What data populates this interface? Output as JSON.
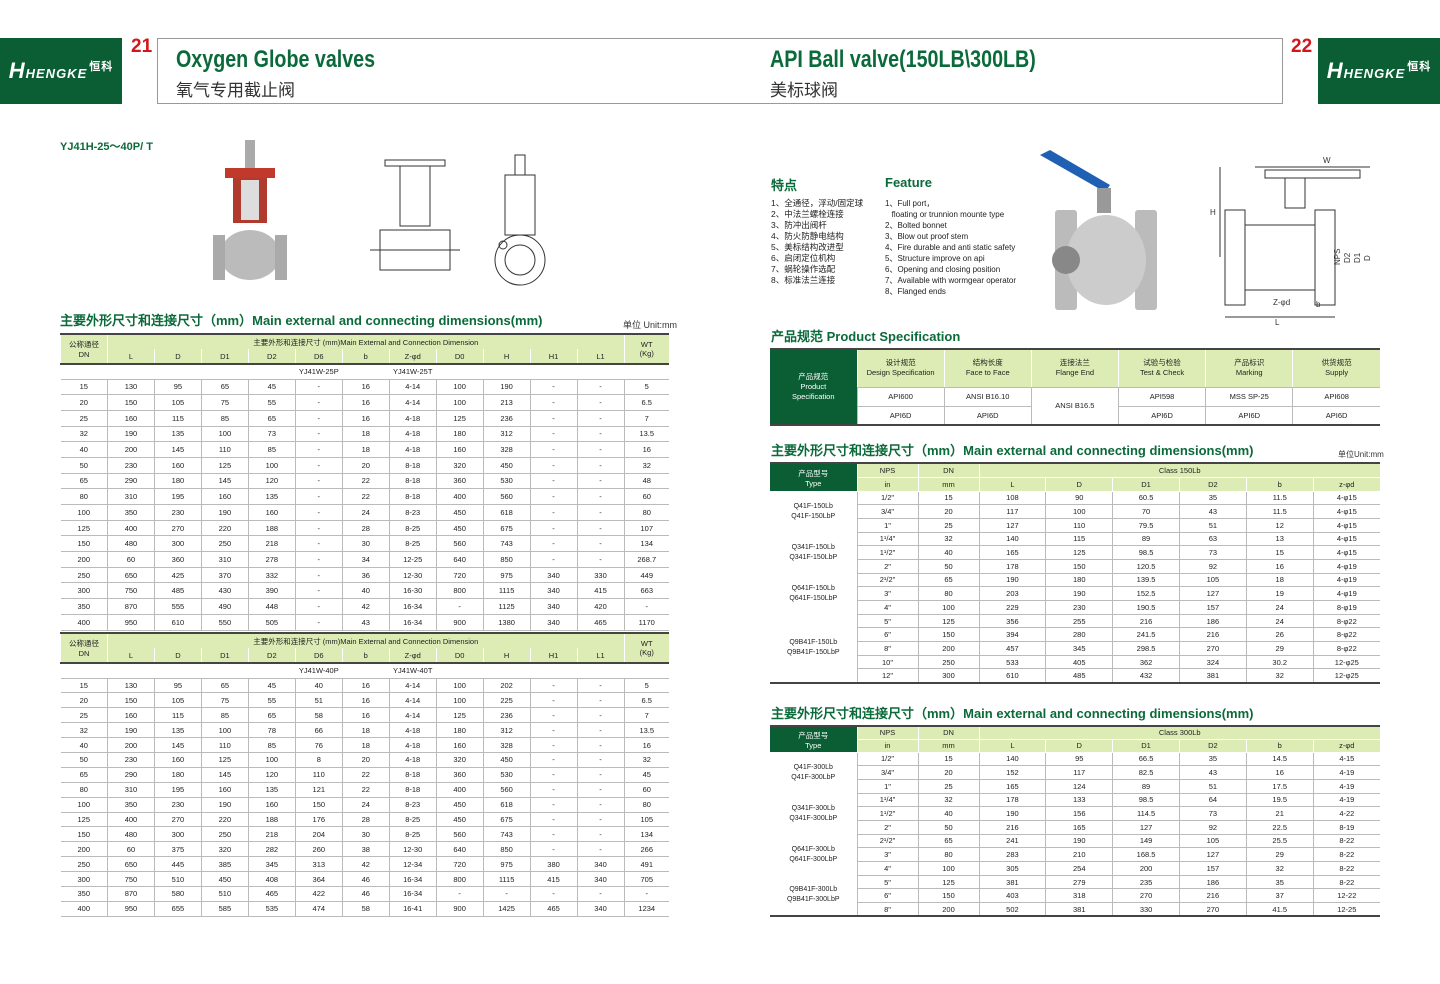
{
  "brand": {
    "logo_text": "HENGKE",
    "logo_cn": "恒科"
  },
  "left": {
    "page_number": "21",
    "title": "Oxygen Globe valves",
    "subtitle": "氧气专用截止阀",
    "model": "YJ41H-25～40P/ T",
    "dims_heading": "主要外形尺寸和连接尺寸（mm）Main external and connecting dimensions(mm)",
    "unit": "单位 Unit:mm",
    "header": {
      "dn_cn": "公称通径",
      "dn": "DN",
      "span": "主要外形和连接尺寸 (mm)Main External and Connection Dimension",
      "wt": "WT",
      "wt_unit": "(Kg)",
      "cols": [
        "L",
        "D",
        "D1",
        "D2",
        "D6",
        "b",
        "Z-φd",
        "D0",
        "H",
        "H1",
        "L1"
      ]
    },
    "table1": {
      "models": [
        "YJ41W-25P",
        "YJ41W-25T"
      ],
      "rows": [
        [
          "15",
          "130",
          "95",
          "65",
          "45",
          "-",
          "16",
          "4-14",
          "100",
          "190",
          "-",
          "-",
          "5"
        ],
        [
          "20",
          "150",
          "105",
          "75",
          "55",
          "-",
          "16",
          "4-14",
          "100",
          "213",
          "-",
          "-",
          "6.5"
        ],
        [
          "25",
          "160",
          "115",
          "85",
          "65",
          "-",
          "16",
          "4-18",
          "125",
          "236",
          "-",
          "-",
          "7"
        ],
        [
          "32",
          "190",
          "135",
          "100",
          "73",
          "-",
          "18",
          "4-18",
          "180",
          "312",
          "-",
          "-",
          "13.5"
        ],
        [
          "40",
          "200",
          "145",
          "110",
          "85",
          "-",
          "18",
          "4-18",
          "160",
          "328",
          "-",
          "-",
          "16"
        ],
        [
          "50",
          "230",
          "160",
          "125",
          "100",
          "-",
          "20",
          "8-18",
          "320",
          "450",
          "-",
          "-",
          "32"
        ],
        [
          "65",
          "290",
          "180",
          "145",
          "120",
          "-",
          "22",
          "8-18",
          "360",
          "530",
          "-",
          "-",
          "48"
        ],
        [
          "80",
          "310",
          "195",
          "160",
          "135",
          "-",
          "22",
          "8-18",
          "400",
          "560",
          "-",
          "-",
          "60"
        ],
        [
          "100",
          "350",
          "230",
          "190",
          "160",
          "-",
          "24",
          "8-23",
          "450",
          "618",
          "-",
          "-",
          "80"
        ],
        [
          "125",
          "400",
          "270",
          "220",
          "188",
          "-",
          "28",
          "8-25",
          "450",
          "675",
          "-",
          "-",
          "107"
        ],
        [
          "150",
          "480",
          "300",
          "250",
          "218",
          "-",
          "30",
          "8-25",
          "560",
          "743",
          "-",
          "-",
          "134"
        ],
        [
          "200",
          "60",
          "360",
          "310",
          "278",
          "-",
          "34",
          "12-25",
          "640",
          "850",
          "-",
          "-",
          "268.7"
        ],
        [
          "250",
          "650",
          "425",
          "370",
          "332",
          "-",
          "36",
          "12-30",
          "720",
          "975",
          "340",
          "330",
          "449"
        ],
        [
          "300",
          "750",
          "485",
          "430",
          "390",
          "-",
          "40",
          "16-30",
          "800",
          "1115",
          "340",
          "415",
          "663"
        ],
        [
          "350",
          "870",
          "555",
          "490",
          "448",
          "-",
          "42",
          "16-34",
          "-",
          "1125",
          "340",
          "420",
          "-"
        ],
        [
          "400",
          "950",
          "610",
          "550",
          "505",
          "-",
          "43",
          "16-34",
          "900",
          "1380",
          "340",
          "465",
          "1170"
        ]
      ]
    },
    "table2": {
      "models": [
        "YJ41W-40P",
        "YJ41W-40T"
      ],
      "rows": [
        [
          "15",
          "130",
          "95",
          "65",
          "45",
          "40",
          "16",
          "4-14",
          "100",
          "202",
          "-",
          "-",
          "5"
        ],
        [
          "20",
          "150",
          "105",
          "75",
          "55",
          "51",
          "16",
          "4-14",
          "100",
          "225",
          "-",
          "-",
          "6.5"
        ],
        [
          "25",
          "160",
          "115",
          "85",
          "65",
          "58",
          "16",
          "4-14",
          "125",
          "236",
          "-",
          "-",
          "7"
        ],
        [
          "32",
          "190",
          "135",
          "100",
          "78",
          "66",
          "18",
          "4-18",
          "180",
          "312",
          "-",
          "-",
          "13.5"
        ],
        [
          "40",
          "200",
          "145",
          "110",
          "85",
          "76",
          "18",
          "4-18",
          "160",
          "328",
          "-",
          "-",
          "16"
        ],
        [
          "50",
          "230",
          "160",
          "125",
          "100",
          "8",
          "20",
          "4-18",
          "320",
          "450",
          "-",
          "-",
          "32"
        ],
        [
          "65",
          "290",
          "180",
          "145",
          "120",
          "110",
          "22",
          "8-18",
          "360",
          "530",
          "-",
          "-",
          "45"
        ],
        [
          "80",
          "310",
          "195",
          "160",
          "135",
          "121",
          "22",
          "8-18",
          "400",
          "560",
          "-",
          "-",
          "60"
        ],
        [
          "100",
          "350",
          "230",
          "190",
          "160",
          "150",
          "24",
          "8-23",
          "450",
          "618",
          "-",
          "-",
          "80"
        ],
        [
          "125",
          "400",
          "270",
          "220",
          "188",
          "176",
          "28",
          "8-25",
          "450",
          "675",
          "-",
          "-",
          "105"
        ],
        [
          "150",
          "480",
          "300",
          "250",
          "218",
          "204",
          "30",
          "8-25",
          "560",
          "743",
          "-",
          "-",
          "134"
        ],
        [
          "200",
          "60",
          "375",
          "320",
          "282",
          "260",
          "38",
          "12-30",
          "640",
          "850",
          "-",
          "-",
          "266"
        ],
        [
          "250",
          "650",
          "445",
          "385",
          "345",
          "313",
          "42",
          "12-34",
          "720",
          "975",
          "380",
          "340",
          "491"
        ],
        [
          "300",
          "750",
          "510",
          "450",
          "408",
          "364",
          "46",
          "16-34",
          "800",
          "1115",
          "415",
          "340",
          "705"
        ],
        [
          "350",
          "870",
          "580",
          "510",
          "465",
          "422",
          "46",
          "16-34",
          "-",
          "-",
          "-",
          "-",
          "-"
        ],
        [
          "400",
          "950",
          "655",
          "585",
          "535",
          "474",
          "58",
          "16-41",
          "900",
          "1425",
          "465",
          "340",
          "1234"
        ]
      ]
    }
  },
  "right": {
    "page_number": "22",
    "title": "API Ball valve(150LB\\300LB)",
    "subtitle": "美标球阀",
    "features_cn_title": "特点",
    "features_en_title": "Feature",
    "features_cn": [
      "1、全通径，浮动/固定球",
      "2、中法兰螺栓连接",
      "3、防冲出阀杆",
      "4、防火防静电结构",
      "5、美标结构改进型",
      "6、启闭定位机构",
      "7、蜗轮操作选配",
      "8、标准法兰连接"
    ],
    "features_en": [
      "1、Full port，",
      "   floating or trunnion mounte type",
      "2、Bolted bonnet",
      "3、Blow out proof stem",
      "4、Fire durable and anti static safety",
      "5、Structure improve on api",
      "6、Opening and closing position",
      "7、Available with wormgear operator",
      "8、Flanged ends"
    ],
    "drawing_labels": {
      "w": "W",
      "h": "H",
      "l": "L",
      "zd": "Z-φd",
      "b": "b",
      "nps": "NPS",
      "d2": "D2",
      "d1": "D1",
      "d": "D"
    },
    "spec_heading_cn": "产品规范",
    "spec_heading_en": "Product Specification",
    "spec": {
      "row_label_cn": "产品规范",
      "row_label_en1": "Product",
      "row_label_en2": "Specification",
      "headers": [
        [
          "设计规范",
          "Design Specification"
        ],
        [
          "结构长度",
          "Face to Face"
        ],
        [
          "连接法兰",
          "Flange End"
        ],
        [
          "试验与检验",
          "Test & Check"
        ],
        [
          "产品标识",
          "Marking"
        ],
        [
          "供货规范",
          "Supply"
        ]
      ],
      "row1": [
        "API600",
        "ANSI B16.10",
        "ANSI B16.5",
        "API598",
        "MSS SP-25",
        "API608"
      ],
      "row2": [
        "API6D",
        "API6D",
        "API6D",
        "API6D",
        "API6D"
      ]
    },
    "dims_heading": "主要外形尺寸和连接尺寸（mm）Main external and connecting dimensions(mm)",
    "unit": "单位Unit:mm",
    "header": {
      "type_cn": "产品型号",
      "type_en": "Type",
      "nps": "NPS",
      "in": "in",
      "dn": "DN",
      "mm": "mm",
      "cols": [
        "L",
        "D",
        "D1",
        "D2",
        "b",
        "z-φd"
      ]
    },
    "class150": {
      "label": "Class 150Lb",
      "types": [
        [
          "Q41F-150Lb",
          "Q41F-150LbP"
        ],
        [
          "Q341F-150Lb",
          "Q341F-150LbP"
        ],
        [
          "Q641F-150Lb",
          "Q641F-150LbP"
        ],
        [
          "Q9B41F-150Lb",
          "Q9B41F-150LbP"
        ]
      ],
      "rows": [
        [
          "1/2\"",
          "15",
          "108",
          "90",
          "60.5",
          "35",
          "11.5",
          "4-φ15"
        ],
        [
          "3/4\"",
          "20",
          "117",
          "100",
          "70",
          "43",
          "11.5",
          "4-φ15"
        ],
        [
          "1\"",
          "25",
          "127",
          "110",
          "79.5",
          "51",
          "12",
          "4-φ15"
        ],
        [
          "1¹/4\"",
          "32",
          "140",
          "115",
          "89",
          "63",
          "13",
          "4-φ15"
        ],
        [
          "1¹/2\"",
          "40",
          "165",
          "125",
          "98.5",
          "73",
          "15",
          "4-φ15"
        ],
        [
          "2\"",
          "50",
          "178",
          "150",
          "120.5",
          "92",
          "16",
          "4-φ19"
        ],
        [
          "2¹/2\"",
          "65",
          "190",
          "180",
          "139.5",
          "105",
          "18",
          "4-φ19"
        ],
        [
          "3\"",
          "80",
          "203",
          "190",
          "152.5",
          "127",
          "19",
          "4-φ19"
        ],
        [
          "4\"",
          "100",
          "229",
          "230",
          "190.5",
          "157",
          "24",
          "8-φ19"
        ],
        [
          "5\"",
          "125",
          "356",
          "255",
          "216",
          "186",
          "24",
          "8-φ22"
        ],
        [
          "6\"",
          "150",
          "394",
          "280",
          "241.5",
          "216",
          "26",
          "8-φ22"
        ],
        [
          "8\"",
          "200",
          "457",
          "345",
          "298.5",
          "270",
          "29",
          "8-φ22"
        ],
        [
          "10\"",
          "250",
          "533",
          "405",
          "362",
          "324",
          "30.2",
          "12-φ25"
        ],
        [
          "12\"",
          "300",
          "610",
          "485",
          "432",
          "381",
          "32",
          "12-φ25"
        ]
      ]
    },
    "class300": {
      "label": "Class 300Lb",
      "types": [
        [
          "Q41F-300Lb",
          "Q41F-300LbP"
        ],
        [
          "Q341F-300Lb",
          "Q341F-300LbP"
        ],
        [
          "Q641F-300Lb",
          "Q641F-300LbP"
        ],
        [
          "Q9B41F-300Lb",
          "Q9B41F-300LbP"
        ]
      ],
      "rows": [
        [
          "1/2\"",
          "15",
          "140",
          "95",
          "66.5",
          "35",
          "14.5",
          "4-15"
        ],
        [
          "3/4\"",
          "20",
          "152",
          "117",
          "82.5",
          "43",
          "16",
          "4-19"
        ],
        [
          "1\"",
          "25",
          "165",
          "124",
          "89",
          "51",
          "17.5",
          "4-19"
        ],
        [
          "1¹/4\"",
          "32",
          "178",
          "133",
          "98.5",
          "64",
          "19.5",
          "4-19"
        ],
        [
          "1¹/2\"",
          "40",
          "190",
          "156",
          "114.5",
          "73",
          "21",
          "4-22"
        ],
        [
          "2\"",
          "50",
          "216",
          "165",
          "127",
          "92",
          "22.5",
          "8-19"
        ],
        [
          "2¹/2\"",
          "65",
          "241",
          "190",
          "149",
          "105",
          "25.5",
          "8-22"
        ],
        [
          "3\"",
          "80",
          "283",
          "210",
          "168.5",
          "127",
          "29",
          "8-22"
        ],
        [
          "4\"",
          "100",
          "305",
          "254",
          "200",
          "157",
          "32",
          "8-22"
        ],
        [
          "5\"",
          "125",
          "381",
          "279",
          "235",
          "186",
          "35",
          "8-22"
        ],
        [
          "6\"",
          "150",
          "403",
          "318",
          "270",
          "216",
          "37",
          "12-22"
        ],
        [
          "8\"",
          "200",
          "502",
          "381",
          "330",
          "270",
          "41.5",
          "12-25"
        ]
      ]
    }
  },
  "colors": {
    "brand_green": "#0b5e34",
    "title_green": "#0b6a3a",
    "header_green": "#dcecb4",
    "page_number_red": "#d4161a"
  }
}
